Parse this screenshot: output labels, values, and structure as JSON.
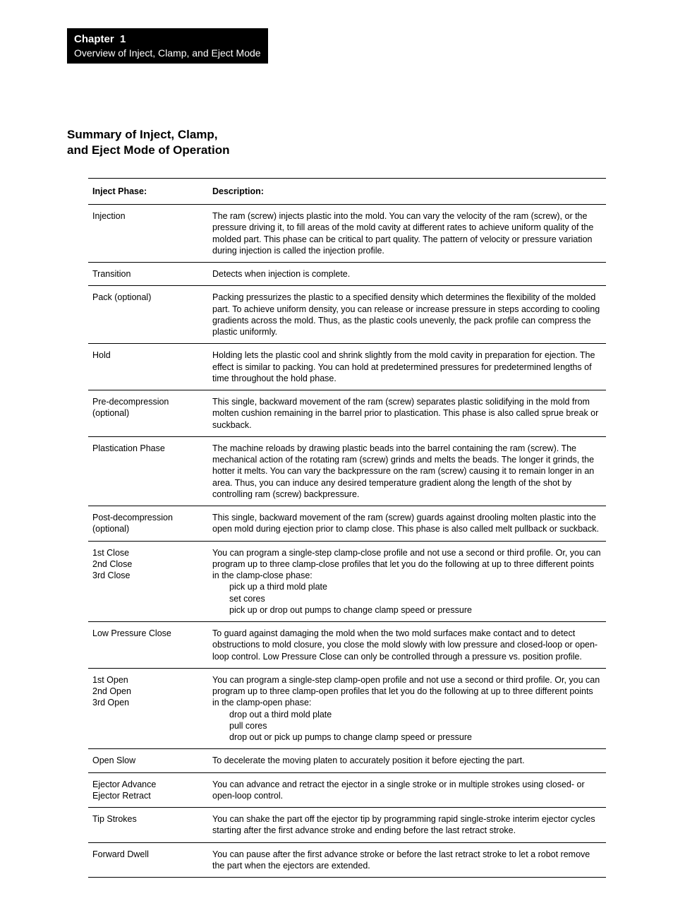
{
  "chapter": {
    "label": "Chapter  1",
    "subtitle": "Overview of Inject, Clamp, and Eject Mode"
  },
  "section_heading": "Summary of Inject, Clamp,\nand Eject Mode of Operation",
  "table": {
    "headers": [
      "Inject Phase:",
      "Description:"
    ],
    "rows": [
      {
        "phase": "Injection",
        "desc": "The ram (screw) injects plastic into the mold. You can vary the velocity of the ram (screw), or the pressure driving it, to fill areas of the mold cavity at different rates to achieve uniform quality of the molded part.  This phase can be critical to part quality.  The pattern of velocity or pressure variation during injection is called the injection profile."
      },
      {
        "phase": "Transition",
        "desc": "Detects when injection is complete."
      },
      {
        "phase": "Pack (optional)",
        "desc": "Packing pressurizes the plastic to a specified density which determines the flexibility of the molded part.  To achieve uniform density, you can release or increase pressure in steps according to cooling gradients across the mold.  Thus, as the plastic cools unevenly, the pack profile can compress the plastic uniformly."
      },
      {
        "phase": "Hold",
        "desc": "Holding lets the plastic cool and shrink slightly from the mold cavity in preparation for ejection.  The effect is similar to packing.  You can hold at predetermined pressures for predetermined lengths of time throughout the hold phase."
      },
      {
        "phase": "Pre-decompression (optional)",
        "desc": "This single, backward movement of the ram (screw) separates plastic solidifying in the mold from molten cushion remaining in the barrel prior to plastication. This phase is also called sprue break or suckback."
      },
      {
        "phase": "Plastication Phase",
        "desc": "The machine reloads by drawing plastic beads into the barrel containing the ram (screw).  The mechanical action of the rotating ram (screw) grinds and melts the beads.  The longer it grinds, the hotter it melts. You can vary the backpressure on the ram (screw) causing it to remain longer in an area.  Thus, you can induce any desired temperature gradient along the length of the shot by controlling ram (screw) backpressure."
      },
      {
        "phase": "Post-decompression\n(optional)",
        "desc": "This single, backward movement of the ram (screw) guards against drooling molten plastic into the open mold during ejection prior to clamp close.  This phase is also called melt pullback or suckback."
      },
      {
        "phase": "1st Close\n2nd Close\n3rd Close",
        "desc_intro": "You can program a single-step clamp-close profile and not use a second or third profile. Or, you can program up to three clamp-close profiles that let you do the following at up to three different points in the clamp-close phase:",
        "desc_items": [
          "pick up a third mold plate",
          "set cores",
          "pick up or drop out pumps to change clamp speed or pressure"
        ]
      },
      {
        "phase": "Low Pressure Close",
        "desc": "To guard against damaging the mold when the two mold surfaces make contact and to detect obstructions to mold closure, you close the mold slowly with low pressure and closed-loop or open-loop control.  Low Pressure Close can only be controlled through a pressure vs. position profile."
      },
      {
        "phase": "1st Open\n2nd Open\n3rd Open",
        "desc_intro": "You can program a single-step clamp-open profile and not use a second or third profile.  Or, you can program up to three clamp-open profiles that let you do the following at up to three different points in the clamp-open phase:",
        "desc_items": [
          "drop out a third mold plate",
          "pull cores",
          "drop out or pick up pumps to change clamp speed or pressure"
        ]
      },
      {
        "phase": "Open Slow",
        "desc": "To decelerate the moving platen to accurately position it before ejecting the part."
      },
      {
        "phase": "Ejector Advance\nEjector Retract",
        "desc": "You can advance and retract the ejector in a single stroke or in multiple strokes using closed- or open-loop control."
      },
      {
        "phase": "Tip Strokes",
        "desc": "You can shake the part off the ejector tip by programming rapid single-stroke interim ejector cycles starting after the first advance stroke and ending before the last retract stroke."
      },
      {
        "phase": "Forward Dwell",
        "desc": "You can pause after the first advance stroke or before the last retract stroke to let a robot remove the part when the ejectors are extended."
      }
    ]
  }
}
